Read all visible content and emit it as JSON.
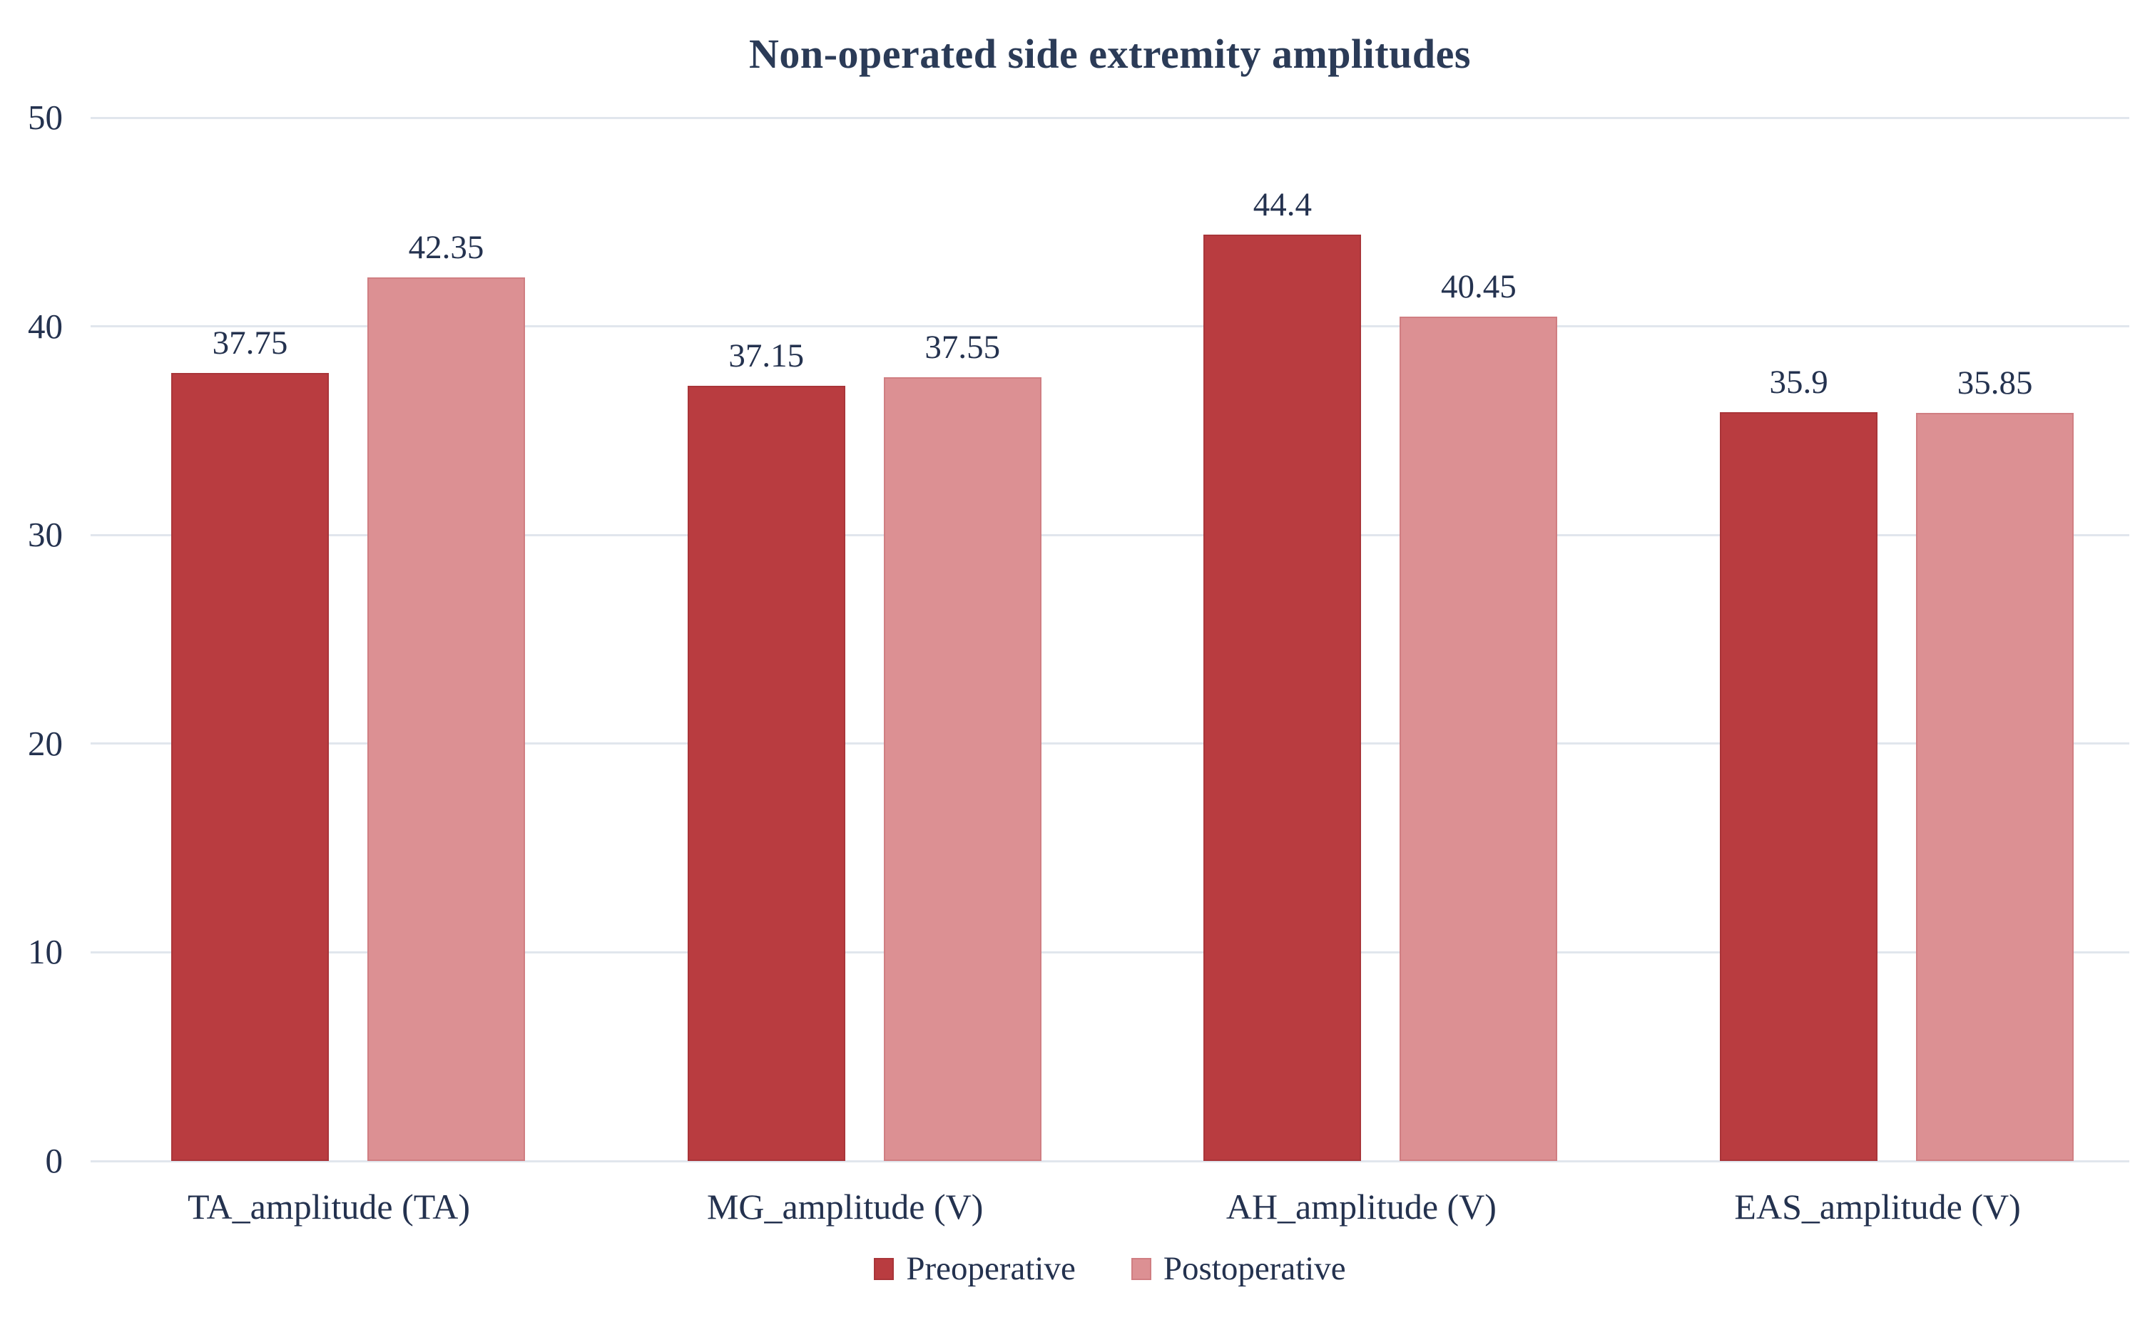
{
  "chart_data": {
    "type": "bar",
    "title": "Non-operated side extremity amplitudes",
    "categories": [
      "TA_amplitude (TA)",
      "MG_amplitude (V)",
      "AH_amplitude (V)",
      "EAS_amplitude (V)"
    ],
    "series": [
      {
        "name": "Preoperative",
        "color": "#b93c40",
        "border_color": "#a93539",
        "values": [
          37.75,
          37.15,
          44.4,
          35.9
        ],
        "labels": [
          "37.75",
          "37.15",
          "44.4",
          "35.9"
        ]
      },
      {
        "name": "Postoperative",
        "color": "#dc9093",
        "border_color": "#d07e82",
        "values": [
          42.35,
          37.55,
          40.45,
          35.85
        ],
        "labels": [
          "42.35",
          "37.55",
          "40.45",
          "35.85"
        ]
      }
    ],
    "xlabel": "",
    "ylabel": "",
    "ylim": [
      0,
      50
    ],
    "yticks": [
      0,
      10,
      20,
      30,
      40,
      50
    ],
    "grid": true,
    "legend_position": "bottom",
    "title_color": "#2b3b57",
    "text_color": "#24324f",
    "grid_color": "#e1e6ed",
    "background": "#ffffff"
  }
}
